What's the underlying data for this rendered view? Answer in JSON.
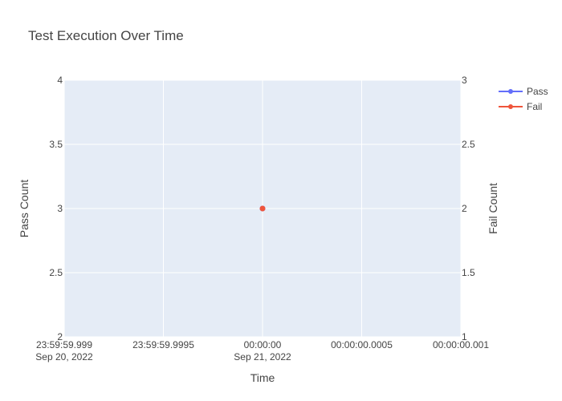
{
  "chart_data": {
    "type": "line",
    "title": "Test Execution Over Time",
    "xlabel": "Time",
    "ylabel": "Pass Count",
    "y2label": "Fail Count",
    "x_ticks": [
      {
        "line1": "23:59:59.999",
        "line2": "Sep 20, 2022"
      },
      {
        "line1": "23:59:59.9995",
        "line2": ""
      },
      {
        "line1": "00:00:00",
        "line2": "Sep 21, 2022"
      },
      {
        "line1": "00:00:00.0005",
        "line2": ""
      },
      {
        "line1": "00:00:00.001",
        "line2": ""
      }
    ],
    "xlim_ms": [
      -1,
      1
    ],
    "x_tick_values_ms": [
      -1,
      -0.5,
      0,
      0.5,
      1
    ],
    "ylim": [
      2,
      4
    ],
    "y_ticks": [
      "2",
      "2.5",
      "3",
      "3.5",
      "4"
    ],
    "y_tick_values": [
      2,
      2.5,
      3,
      3.5,
      4
    ],
    "y2lim": [
      1,
      3
    ],
    "y2_ticks": [
      "1",
      "1.5",
      "2",
      "2.5",
      "3"
    ],
    "y2_tick_values": [
      1,
      1.5,
      2,
      2.5,
      3
    ],
    "series": [
      {
        "name": "Pass",
        "axis": "y",
        "color": "#636efa",
        "points": [
          {
            "x_ms": 0,
            "y": 3
          }
        ]
      },
      {
        "name": "Fail",
        "axis": "y2",
        "color": "#ef553b",
        "points": [
          {
            "x_ms": 0,
            "y": 2
          }
        ]
      }
    ],
    "grid": true,
    "legend_position": "top-right",
    "plot_bg": "#e5ecf6"
  }
}
